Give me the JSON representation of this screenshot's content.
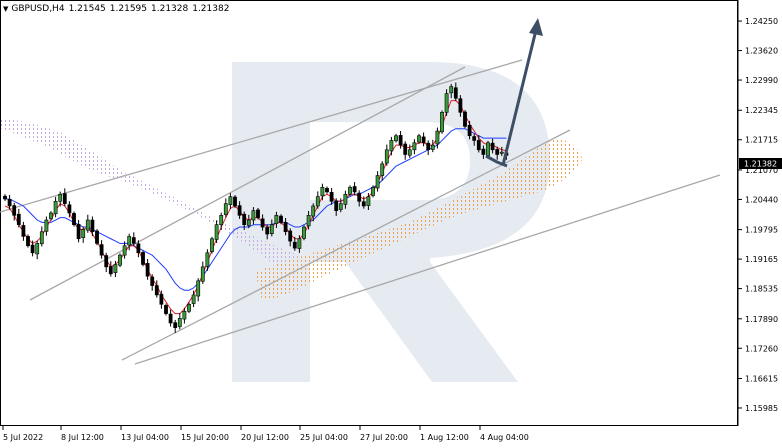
{
  "header": {
    "symbol": "GBPUSD,H4",
    "open": "1.21545",
    "high": "1.21595",
    "low": "1.21328",
    "close": "1.21382"
  },
  "chart_data": {
    "type": "candlestick",
    "symbol": "GBPUSD",
    "timeframe": "H4",
    "current_price": "1.21382",
    "ylim": [
      1.156,
      1.247
    ],
    "y_ticks": [
      "1.24250",
      "1.23620",
      "1.22990",
      "1.22345",
      "1.21715",
      "1.21070",
      "1.20440",
      "1.19795",
      "1.19165",
      "1.18535",
      "1.17890",
      "1.17260",
      "1.16615",
      "1.15985"
    ],
    "x_ticks": [
      "5 Jul 2022",
      "8 Jul 12:00",
      "13 Jul 04:00",
      "15 Jul 20:00",
      "20 Jul 12:00",
      "25 Jul 04:00",
      "27 Jul 20:00",
      "1 Aug 12:00",
      "4 Aug 04:00"
    ],
    "closes": [
      1.2045,
      1.203,
      1.201,
      1.199,
      1.1965,
      1.1945,
      1.193,
      1.195,
      1.1975,
      1.2,
      1.2015,
      1.204,
      1.2055,
      1.2035,
      1.2015,
      1.199,
      1.196,
      1.198,
      1.2,
      1.1975,
      1.195,
      1.1925,
      1.19,
      1.1885,
      1.1905,
      1.1925,
      1.1945,
      1.1965,
      1.195,
      1.193,
      1.1905,
      1.188,
      1.186,
      1.184,
      1.182,
      1.18,
      1.178,
      1.177,
      1.179,
      1.1805,
      1.182,
      1.184,
      1.187,
      1.19,
      1.193,
      1.196,
      1.199,
      1.201,
      1.2035,
      1.205,
      1.203,
      1.201,
      1.199,
      1.2,
      1.202,
      1.2005,
      1.1985,
      1.197,
      1.199,
      1.201,
      1.1995,
      1.1975,
      1.1955,
      1.194,
      1.196,
      1.1985,
      1.201,
      1.203,
      1.205,
      1.207,
      1.206,
      1.204,
      1.202,
      1.2035,
      1.2055,
      1.207,
      1.206,
      1.204,
      1.203,
      1.205,
      1.207,
      1.2095,
      1.212,
      1.215,
      1.217,
      1.218,
      1.216,
      1.214,
      1.215,
      1.2165,
      1.218,
      1.2165,
      1.215,
      1.216,
      1.219,
      1.223,
      1.227,
      1.2285,
      1.226,
      1.223,
      1.22,
      1.218,
      1.217,
      1.215,
      1.214,
      1.2165,
      1.215,
      1.214,
      1.2145,
      1.2138
    ],
    "tenkan": [
      1.203,
      1.2025,
      1.201,
      1.199,
      1.1975,
      1.196,
      1.195,
      1.1955,
      1.1965,
      1.1985,
      1.2,
      1.202,
      1.2035,
      1.203,
      1.2015,
      1.1995,
      1.198,
      1.198,
      1.1985,
      1.197,
      1.1955,
      1.1935,
      1.1915,
      1.19,
      1.1905,
      1.1915,
      1.193,
      1.1945,
      1.1945,
      1.1935,
      1.1915,
      1.1895,
      1.1875,
      1.186,
      1.184,
      1.1825,
      1.181,
      1.18,
      1.18,
      1.181,
      1.1825,
      1.184,
      1.186,
      1.1885,
      1.191,
      1.1935,
      1.196,
      1.1985,
      1.2005,
      1.2025,
      1.203,
      1.202,
      1.2005,
      1.2,
      1.2005,
      1.2005,
      1.1995,
      1.1985,
      1.1985,
      1.1995,
      1.1995,
      1.1985,
      1.197,
      1.196,
      1.196,
      1.197,
      1.199,
      1.201,
      1.203,
      1.205,
      1.2055,
      1.205,
      1.204,
      1.204,
      1.2045,
      1.2055,
      1.2055,
      1.205,
      1.2045,
      1.205,
      1.206,
      1.208,
      1.21,
      1.2125,
      1.2145,
      1.216,
      1.216,
      1.2155,
      1.2155,
      1.216,
      1.2165,
      1.2165,
      1.216,
      1.216,
      1.2175,
      1.22,
      1.223,
      1.2255,
      1.2255,
      1.2245,
      1.2225,
      1.2205,
      1.219,
      1.2175,
      1.2165,
      1.216,
      1.216,
      1.2155,
      1.215,
      1.2148
    ],
    "kijun": [
      1.2045,
      1.2045,
      1.204,
      1.2035,
      1.203,
      1.202,
      1.201,
      1.2,
      1.1995,
      1.1995,
      1.1995,
      1.2,
      1.2005,
      1.2005,
      1.2,
      1.1995,
      1.199,
      1.1985,
      1.1985,
      1.198,
      1.1975,
      1.197,
      1.1965,
      1.196,
      1.1955,
      1.195,
      1.195,
      1.195,
      1.1945,
      1.194,
      1.1935,
      1.193,
      1.1925,
      1.1915,
      1.1905,
      1.1895,
      1.188,
      1.1865,
      1.1855,
      1.185,
      1.185,
      1.1855,
      1.1865,
      1.188,
      1.1895,
      1.191,
      1.1925,
      1.194,
      1.1955,
      1.197,
      1.198,
      1.1985,
      1.1985,
      1.1985,
      1.199,
      1.199,
      1.199,
      1.199,
      1.199,
      1.1995,
      1.1995,
      1.1995,
      1.199,
      1.1985,
      1.1985,
      1.199,
      1.1995,
      1.2,
      1.201,
      1.202,
      1.203,
      1.2035,
      1.204,
      1.204,
      1.2045,
      1.205,
      1.2055,
      1.2055,
      1.206,
      1.2065,
      1.207,
      1.2075,
      1.2085,
      1.2095,
      1.2105,
      1.2115,
      1.212,
      1.2125,
      1.213,
      1.2135,
      1.214,
      1.2145,
      1.215,
      1.2155,
      1.216,
      1.217,
      1.218,
      1.219,
      1.2195,
      1.2195,
      1.2195,
      1.219,
      1.2185,
      1.218,
      1.2175,
      1.2175,
      1.2175,
      1.2175,
      1.2175,
      1.2175
    ]
  }
}
